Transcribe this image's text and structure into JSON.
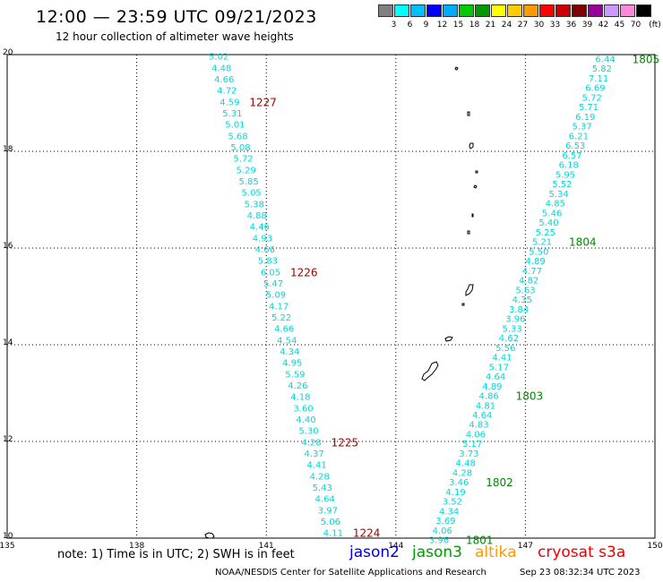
{
  "title": "12:00 — 23:59 UTC 09/21/2023",
  "subtitle": "12 hour collection of altimeter wave heights",
  "colorbar": {
    "colors": [
      "#808080",
      "#00ffff",
      "#00bfff",
      "#0000ff",
      "#00aaff",
      "#00cc00",
      "#009900",
      "#ffff00",
      "#ffcc00",
      "#ff9900",
      "#ff0000",
      "#cc0000",
      "#800000",
      "#990099",
      "#cc99ff",
      "#ff88dd",
      "#000000"
    ],
    "labels": [
      "3",
      "6",
      "9",
      "12",
      "15",
      "18",
      "21",
      "24",
      "27",
      "30",
      "33",
      "36",
      "39",
      "42",
      "45",
      "70"
    ],
    "unit": "(ft)"
  },
  "map": {
    "lon_ticks": [
      "135",
      "138",
      "141",
      "144",
      "147",
      "150"
    ],
    "lat_ticks": [
      "20",
      "18",
      "16",
      "14",
      "12",
      "10"
    ],
    "track_colors": {
      "swh": "#00d8d8",
      "jason3_time": "#008800",
      "cryosat_time": "#990000"
    },
    "jason3_track": {
      "values": [
        "3.96",
        "4.06",
        "3.69",
        "4.34",
        "3.52",
        "4.19",
        "3.46",
        "4.28",
        "4.48",
        "3.73",
        "5.17",
        "4.06",
        "4.83",
        "4.64",
        "4.81",
        "4.86",
        "4.89",
        "4.64",
        "5.17",
        "4.41",
        "5.56",
        "4.62",
        "5.33",
        "3.96",
        "3.84",
        "4.35",
        "5.63",
        "4.82",
        "4.77",
        "4.89",
        "5.50",
        "5.21",
        "5.25",
        "5.40",
        "5.46",
        "4.85",
        "5.34",
        "5.52",
        "5.95",
        "6.18",
        "6.57",
        "6.53",
        "6.21",
        "5.37",
        "6.19",
        "5.71",
        "5.72",
        "6.69",
        "7.11",
        "5.82",
        "6.44"
      ],
      "times": [
        {
          "label": "1801",
          "index": 0
        },
        {
          "label": "1802",
          "index": 12
        },
        {
          "label": "1803",
          "index": 30
        },
        {
          "label": "1804",
          "index": 65
        },
        {
          "label": "1805",
          "index": 99
        }
      ]
    },
    "cryosat_track": {
      "values": [
        "5.02",
        "4.48",
        "4.66",
        "4.72",
        "4.59",
        "5.31",
        "5.01",
        "5.68",
        "5.08",
        "5.72",
        "5.29",
        "5.85",
        "5.05",
        "5.38",
        "4.88",
        "4.46",
        "4.93",
        "4.66",
        "5.83",
        "6.05",
        "5.47",
        "5.09",
        "4.17",
        "5.22",
        "4.66",
        "4.54",
        "4.34",
        "4.95",
        "5.59",
        "4.26",
        "4.18",
        "3.60",
        "4.40",
        "5.30",
        "4.28",
        "4.37",
        "4.41",
        "4.28",
        "5.43",
        "4.64",
        "3.97",
        "5.06",
        "4.11"
      ],
      "times": [
        {
          "label": "1227",
          "index": 4
        },
        {
          "label": "1226",
          "index": 19
        },
        {
          "label": "1225",
          "index": 34
        },
        {
          "label": "1224",
          "index": 42
        }
      ]
    }
  },
  "note": "note:  1) Time is in UTC;  2) SWH is in feet",
  "satellites": [
    {
      "name": "jason2",
      "color": "#0000dd"
    },
    {
      "name": "jason3",
      "color": "#009900"
    },
    {
      "name": "altika",
      "color": "#ff9900"
    },
    {
      "name": "cryosat s3a",
      "color": "#ee0000"
    }
  ],
  "credit": "NOAA/NESDIS Center for Satellite Applications and Research",
  "timestamp": "Sep 23 08:32:34 UTC 2023"
}
